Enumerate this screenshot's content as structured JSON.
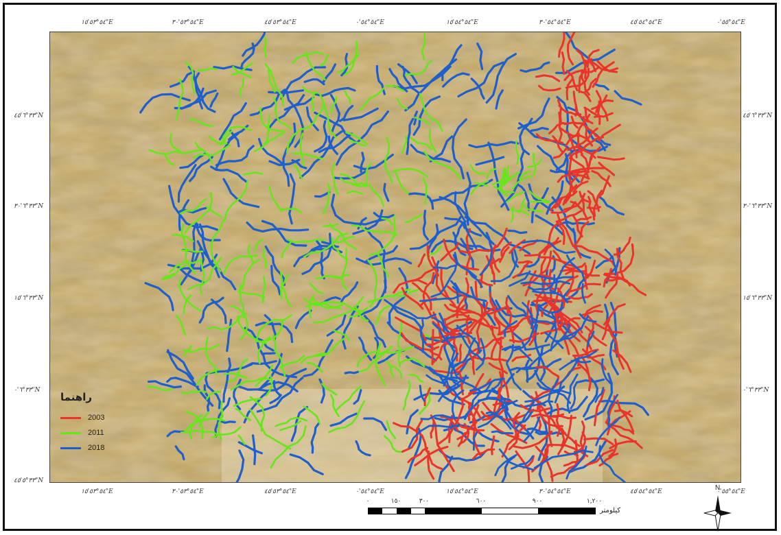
{
  "map": {
    "top_coords": [
      "٥٤°٥٣'١٥\"E",
      "٥٤°٥٣'٣٠\"E",
      "٥٤°٥٣'٤٥\"E",
      "٥٤°٥٤'٠\"E",
      "٥٤°٥٤'١٥\"E",
      "٥٤°٥٤'٣٠\"E",
      "٥٤°٥٤'٤٥\"E",
      "٥٤°٥٥'٠\"E"
    ],
    "bottom_coords": [
      "٥٤°٥٣'١٥\"E",
      "٥٤°٥٣'٣٠\"E",
      "٥٤°٥٣'٤٥\"E",
      "٥٤°٥٤'٠\"E",
      "٥٤°٥٤'١٥\"E",
      "٥٤°٥٤'٣٠\"E",
      "٥٤°٥٤'٤٥\"E",
      "٥٤°٥٥'٠\"E"
    ],
    "left_coords": [
      "٣٣°٦'٤٥\"N",
      "٣٣°٦'٣٠\"N",
      "٣٣°٦'١٥\"N",
      "٣٣°٦'٠\"N",
      "٣٣°٥'٤٥\"N"
    ],
    "right_coords": [
      "٣٣°٦'٤٥\"N",
      "٣٣°٦'٣٠\"N",
      "٣٣°٦'١٥\"N",
      "٣٣°٦'٠\"N"
    ],
    "north_label": "N"
  },
  "legend": {
    "title": "راهنما",
    "items": [
      {
        "label": "2003",
        "color": "#e8342a"
      },
      {
        "label": "2011",
        "color": "#66e61a"
      },
      {
        "label": "2018",
        "color": "#1f5fcc"
      }
    ]
  },
  "scale": {
    "ticks": [
      "٠",
      "١٥٠",
      "٣٠٠",
      "٦٠٠",
      "٩٠٠",
      "١,٢٠٠"
    ],
    "unit": "کیلومتر"
  },
  "colors": {
    "background": "#c4aa6c",
    "y2003": "#e8342a",
    "y2011": "#66e61a",
    "y2018": "#1f5fcc"
  }
}
